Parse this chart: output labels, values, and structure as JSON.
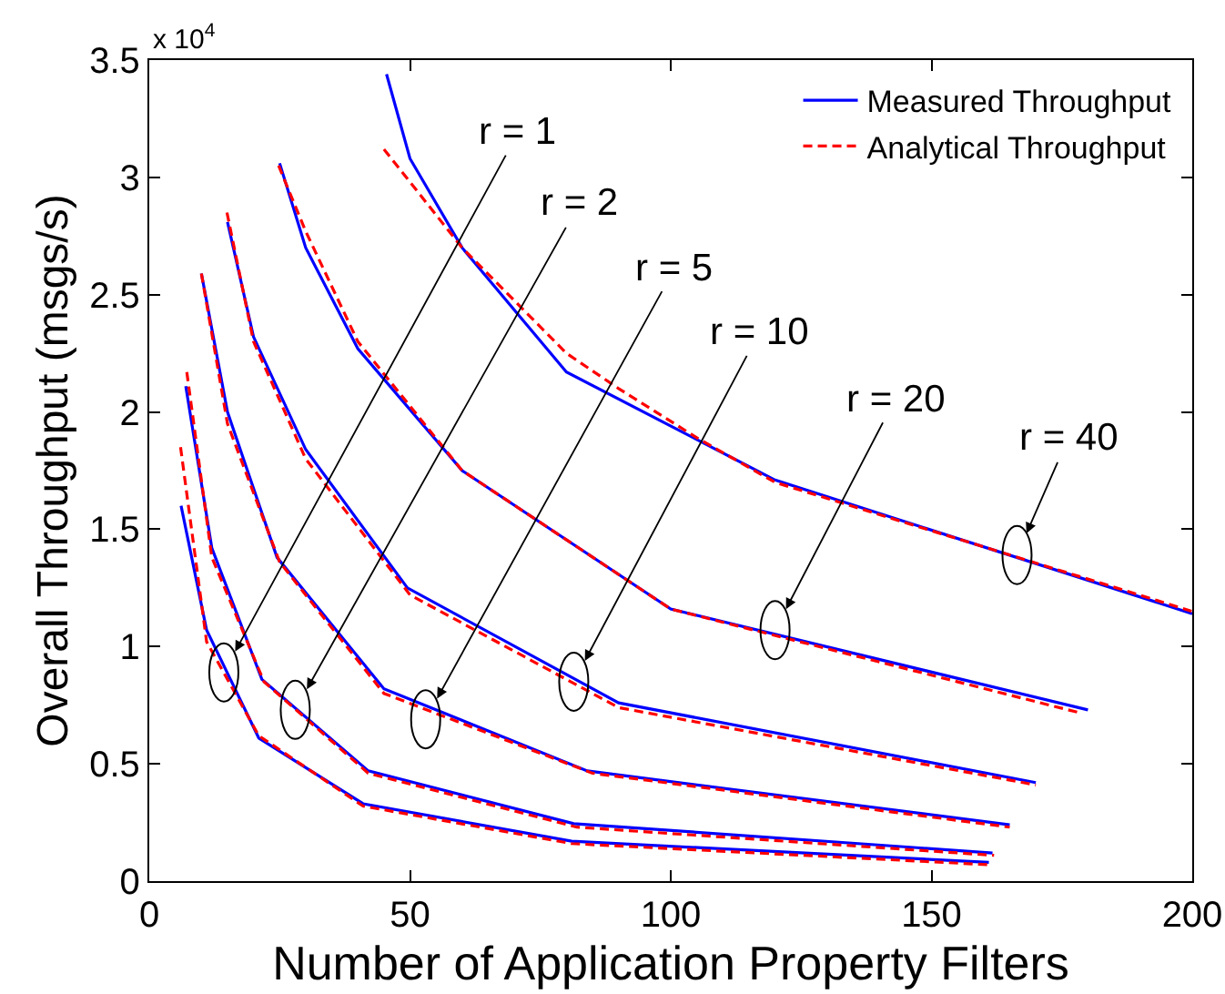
{
  "chart_data": {
    "type": "line",
    "xlabel": "Number of Application Property Filters",
    "ylabel": "Overall Throughput (msgs/s)",
    "xlim": [
      0,
      200
    ],
    "xticks": [
      0,
      50,
      100,
      150,
      200
    ],
    "ylim": [
      0,
      3.5
    ],
    "yticks": [
      0,
      0.5,
      1,
      1.5,
      2,
      2.5,
      3,
      3.5
    ],
    "legend": "top right",
    "series": [
      {
        "name": "Measured Throughput",
        "color": "#0000ff",
        "line_style": "solid",
        "x": [
          6.1,
          11,
          21,
          41,
          81,
          161
        ],
        "values": [
          1.6,
          1.07,
          0.61,
          0.33,
          0.17,
          0.08
        ]
      },
      {
        "name": "Analytical Throughput",
        "color": "#ff0000",
        "line_style": "dashed",
        "x": [
          6,
          11,
          21,
          41,
          81,
          161
        ],
        "values": [
          1.85,
          1.02,
          0.62,
          0.32,
          0.16,
          0.07
        ]
      },
      {
        "color": "#0000ff",
        "line_style": "solid",
        "x": [
          7,
          12,
          21.6,
          42,
          81.4,
          161.7
        ],
        "values": [
          2.11,
          1.42,
          0.86,
          0.47,
          0.245,
          0.12
        ]
      },
      {
        "color": "#ff0000",
        "line_style": "dashed",
        "x": [
          7.2,
          12,
          22,
          42,
          82,
          162
        ],
        "values": [
          2.17,
          1.38,
          0.85,
          0.46,
          0.23,
          0.11
        ]
      },
      {
        "color": "#0000ff",
        "line_style": "solid",
        "x": [
          10,
          15,
          24.5,
          45,
          84,
          165
        ],
        "values": [
          2.59,
          2.0,
          1.38,
          0.82,
          0.47,
          0.24
        ]
      },
      {
        "color": "#ff0000",
        "line_style": "dashed",
        "x": [
          10,
          15,
          25,
          45,
          85,
          165
        ],
        "values": [
          2.59,
          1.95,
          1.36,
          0.8,
          0.46,
          0.23
        ]
      },
      {
        "color": "#0000ff",
        "line_style": "solid",
        "x": [
          15,
          20,
          30,
          49.5,
          90,
          170
        ],
        "values": [
          2.81,
          2.32,
          1.84,
          1.25,
          0.76,
          0.42
        ]
      },
      {
        "color": "#ff0000",
        "line_style": "dashed",
        "x": [
          14.9,
          20,
          30,
          50,
          90,
          170
        ],
        "values": [
          2.85,
          2.3,
          1.8,
          1.22,
          0.74,
          0.41
        ]
      },
      {
        "color": "#0000ff",
        "line_style": "solid",
        "x": [
          25,
          30,
          40,
          60,
          100,
          180
        ],
        "values": [
          3.06,
          2.7,
          2.27,
          1.75,
          1.16,
          0.73
        ]
      },
      {
        "color": "#ff0000",
        "line_style": "dashed",
        "x": [
          24.8,
          30,
          40,
          60,
          100,
          178
        ],
        "values": [
          3.05,
          2.77,
          2.3,
          1.75,
          1.16,
          0.72
        ]
      },
      {
        "color": "#0000ff",
        "line_style": "solid",
        "x": [
          45.5,
          50,
          60,
          80,
          120,
          200
        ],
        "values": [
          3.44,
          3.08,
          2.7,
          2.17,
          1.71,
          1.14
        ]
      },
      {
        "color": "#ff0000",
        "line_style": "dashed",
        "x": [
          45,
          60,
          80,
          90,
          105,
          120,
          200
        ],
        "values": [
          3.12,
          2.7,
          2.25,
          2.1,
          1.89,
          1.7,
          1.15
        ]
      }
    ],
    "annotations": [
      "x 10$^{4}$",
      {
        "text": "r = 1",
        "x": 14.3,
        "y": 0.89
      },
      {
        "text": "r = 2",
        "x": 28,
        "y": 0.73
      },
      {
        "text": "r = 5",
        "x": 53,
        "y": 0.69
      },
      {
        "text": "r = 10",
        "x": 81.4,
        "y": 0.85
      },
      {
        "text": "r = 20",
        "x": 120,
        "y": 1.07
      },
      {
        "text": "r = 40",
        "x": 166.4,
        "y": 1.39
      }
    ]
  }
}
